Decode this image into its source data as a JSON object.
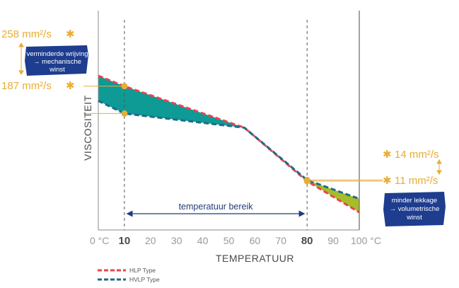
{
  "chart_data": {
    "type": "line",
    "xlabel": "TEMPERATUUR",
    "ylabel": "VISCOSITEIT",
    "x_unit": "°C",
    "xlim": [
      0,
      100
    ],
    "x_ticks": [
      "0 °C",
      "10",
      "20",
      "30",
      "40",
      "50",
      "60",
      "70",
      "80",
      "90",
      "100 °C"
    ],
    "x_ticks_values": [
      0,
      10,
      20,
      30,
      40,
      50,
      60,
      70,
      80,
      90,
      100
    ],
    "bold_ticks": [
      10,
      80
    ],
    "crossover_x": 56,
    "series": [
      {
        "name": "HLP Type",
        "color": "#e8434e",
        "x": [
          0,
          10,
          56,
          80,
          100
        ],
        "y": [
          285,
          258,
          150,
          11,
          -70
        ]
      },
      {
        "name": "HVLP Type",
        "color": "#1e6a8a",
        "x": [
          0,
          10,
          56,
          80,
          100
        ],
        "y": [
          220,
          187,
          150,
          14,
          -35
        ]
      }
    ],
    "fill_colors": {
      "left": "#0e9a95",
      "right": "#a6bd2a"
    },
    "markers": [
      {
        "x": 10,
        "series": "HLP Type",
        "label": "258 mm²/s"
      },
      {
        "x": 10,
        "series": "HVLP Type",
        "label": "187 mm²/s"
      },
      {
        "x": 80,
        "series": "HVLP Type",
        "label": "14 mm²/s"
      },
      {
        "x": 80,
        "series": "HLP Type",
        "label": "11 mm²/s"
      }
    ],
    "range": {
      "from": 10,
      "to": 80,
      "label": "temperatuur bereik"
    },
    "legend": {
      "position": "bottom-left"
    }
  },
  "annotations": {
    "left_badge": [
      "verminderde wrijving",
      "→ mechanische",
      "winst"
    ],
    "right_badge": [
      "minder lekkage",
      "→ volumetrische",
      "winst"
    ],
    "asterisk": "✱"
  },
  "colors": {
    "accent": "#e7ad34",
    "badge": "#1e3d8f",
    "axis": "#888888"
  }
}
